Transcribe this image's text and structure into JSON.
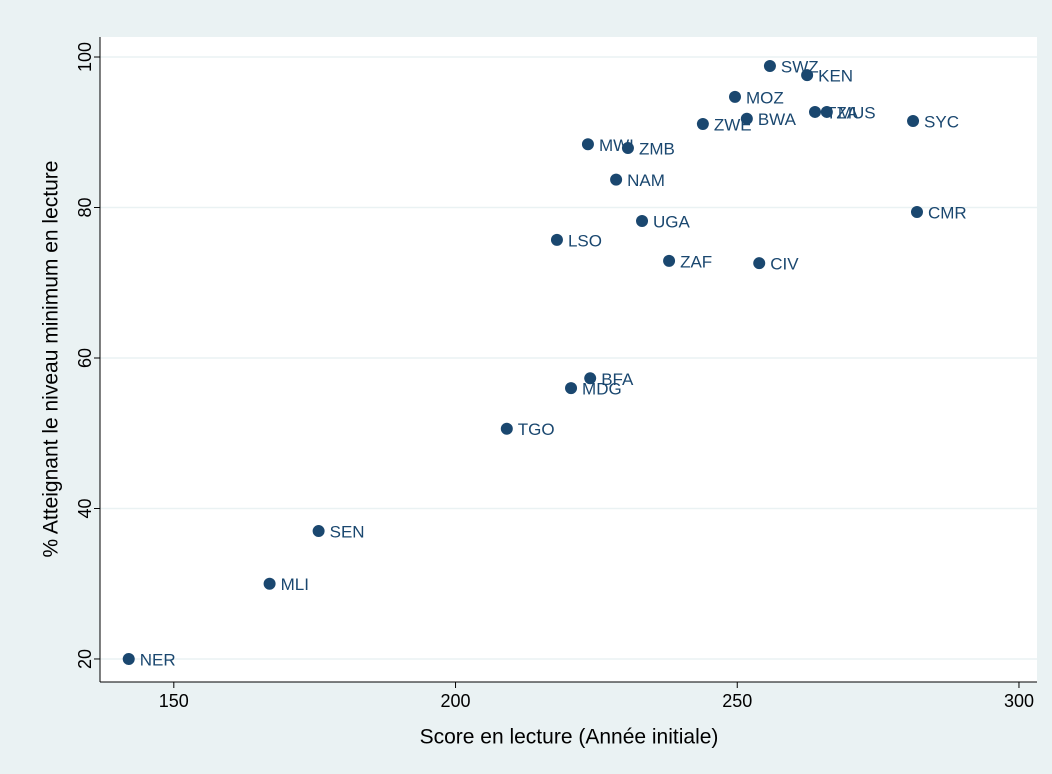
{
  "chart_data": {
    "type": "scatter",
    "x_label": "Score en lecture (Année initiale)",
    "y_label": "% Atteignant le niveau minimum en lecture",
    "color": "#1a476f",
    "series": [
      {
        "name": null,
        "color": "#1a476f",
        "labels": [
          "NER",
          "MLI",
          "SEN",
          "TGO",
          "MDG",
          "BFA",
          "LSO",
          "MWI",
          "ZMB",
          "NAM",
          "UGA",
          "ZAF",
          "ZWE",
          "MOZ",
          "BWA",
          "CIV",
          "SWZ",
          "KEN",
          "TZA",
          "MUS",
          "SYC",
          "CMR"
        ],
        "x": [
          142.0,
          167.0,
          175.7,
          209.1,
          220.5,
          223.9,
          218.0,
          223.5,
          230.6,
          228.5,
          233.1,
          237.9,
          243.9,
          249.6,
          251.7,
          253.9,
          255.8,
          262.4,
          263.8,
          265.9,
          281.2,
          281.9
        ],
        "values": [
          20,
          30,
          37,
          50.6,
          56,
          57.3,
          75.7,
          88.4,
          87.9,
          83.7,
          78.2,
          72.9,
          91.1,
          94.7,
          91.8,
          72.6,
          98.8,
          97.6,
          92.7,
          92.7,
          91.5,
          79.4
        ]
      }
    ],
    "xlim": [
      136.9,
      303.2
    ],
    "xticks": [
      150,
      200,
      250,
      300
    ],
    "ylim": [
      16.94,
      102.66
    ],
    "yticks": [
      20,
      40,
      60,
      80,
      100
    ],
    "grid": true
  }
}
